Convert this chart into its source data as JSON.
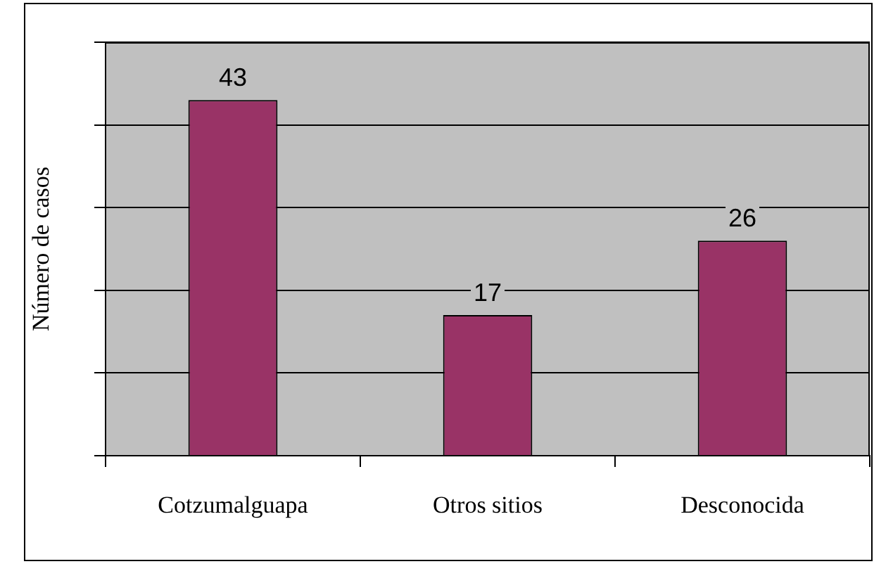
{
  "chart_data": {
    "type": "bar",
    "ylabel": "Número de casos",
    "categories": [
      "Cotzumalguapa",
      "Otros sitios",
      "Desconocida"
    ],
    "values": [
      43,
      17,
      26
    ],
    "color": "#993366",
    "ylim": [
      0,
      50
    ],
    "yticks": [
      {
        "value": 0,
        "label": null
      },
      {
        "value": 10,
        "label": null
      },
      {
        "value": 20,
        "label": null
      },
      {
        "value": 30,
        "label": null
      },
      {
        "value": 40,
        "label": null
      },
      {
        "value": 50,
        "label": null
      }
    ],
    "tick_labels": "x",
    "grid": "y",
    "data_labels": true
  }
}
